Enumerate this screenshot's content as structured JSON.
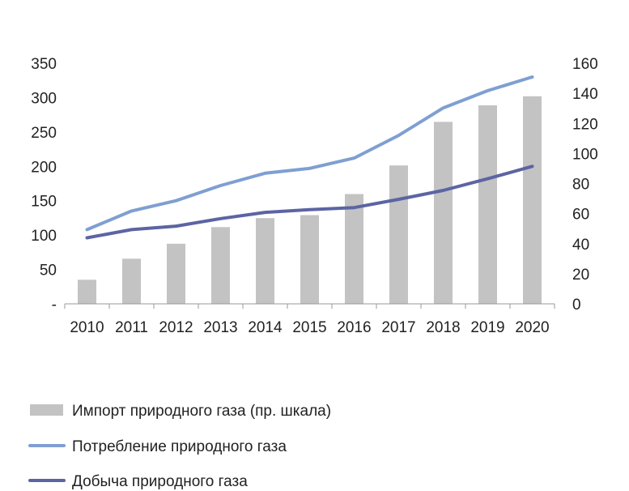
{
  "chart_data": {
    "type": "bar+line",
    "categories": [
      "2010",
      "2011",
      "2012",
      "2013",
      "2014",
      "2015",
      "2016",
      "2017",
      "2018",
      "2019",
      "2020"
    ],
    "left_axis": {
      "ylim": [
        0,
        350
      ],
      "ticks": [
        0,
        50,
        100,
        150,
        200,
        250,
        300,
        350
      ],
      "tick_labels": [
        "-",
        "50",
        "100",
        "150",
        "200",
        "250",
        "300",
        "350"
      ]
    },
    "right_axis": {
      "ylim": [
        0,
        160
      ],
      "ticks": [
        0,
        20,
        40,
        60,
        80,
        100,
        120,
        140,
        160
      ],
      "tick_labels": [
        "0",
        "20",
        "40",
        "60",
        "80",
        "100",
        "120",
        "140",
        "160"
      ]
    },
    "series": [
      {
        "name": "Импорт природного газа (пр. шкала)",
        "kind": "bar",
        "axis": "right",
        "color": "#c3c3c3",
        "values": [
          16,
          30,
          40,
          51,
          57,
          59,
          73,
          92,
          121,
          132,
          138
        ]
      },
      {
        "name": "Потребление природного газа",
        "kind": "line",
        "axis": "left",
        "color": "#7f9fd1",
        "values": [
          108,
          135,
          150,
          172,
          190,
          197,
          212,
          245,
          285,
          310,
          330
        ]
      },
      {
        "name": "Добыча природного газа",
        "kind": "line",
        "axis": "left",
        "color": "#5c64a3",
        "values": [
          96,
          108,
          113,
          124,
          133,
          137,
          140,
          152,
          165,
          182,
          200
        ]
      }
    ],
    "legend_position": "bottom-left",
    "grid": false
  }
}
